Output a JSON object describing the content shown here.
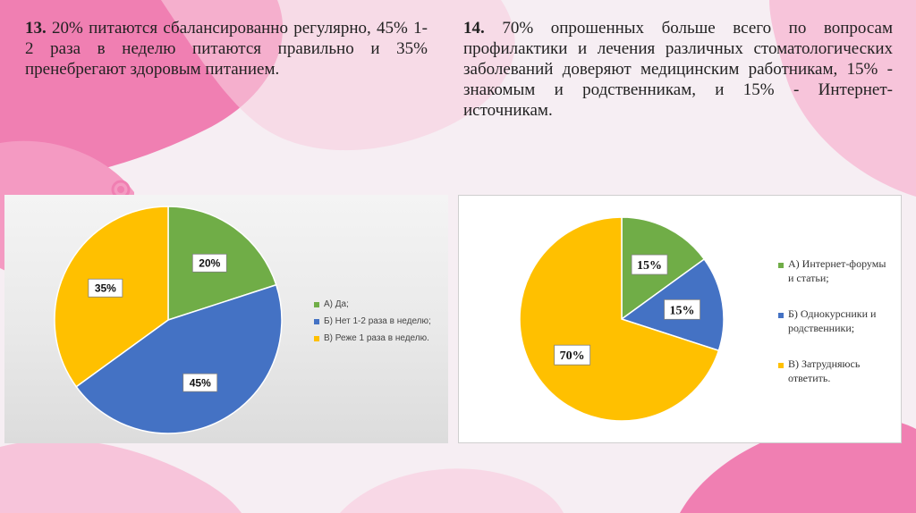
{
  "texts": {
    "p13_num": "13.",
    "p13_body": " 20% питаются сбалансированно регулярно, 45% 1-2 раза в неделю питаются правильно и 35% пренебрегают здоровым питанием.",
    "p14_num": "14.",
    "p14_body": " 70% опрошенных больше всего по вопросам профилактики и лечения различных стоматологических заболеваний доверяют медицинским работникам, 15% - знакомым и родственникам, и 15% - Интернет-источникам."
  },
  "colors": {
    "background": "#f6eef3",
    "pink": "#ef7fb0",
    "pink_light": "#f7b9d3",
    "green": "#70ad47",
    "blue": "#4472c4",
    "gold": "#ffc000"
  },
  "chart_data": [
    {
      "type": "pie",
      "categories": [
        "А) Да;",
        "Б) Нет 1-2 раза в неделю;",
        "В) Реже 1 раза в неделю."
      ],
      "values": [
        20,
        45,
        35
      ],
      "data_labels": [
        "20%",
        "45%",
        "35%"
      ],
      "colors": [
        "#70ad47",
        "#4472c4",
        "#ffc000"
      ],
      "legend_position": "right"
    },
    {
      "type": "pie",
      "categories": [
        "А) Интернет-форумы и статьи;",
        "Б) Однокурсники и родственники;",
        "В) Затрудняюсь ответить."
      ],
      "legend_lines": [
        [
          "А) Интернет-форумы",
          "и статьи;"
        ],
        [
          "Б) Однокурсники и",
          "родственники;"
        ],
        [
          "В) Затрудняюсь",
          "ответить."
        ]
      ],
      "values": [
        15,
        15,
        70
      ],
      "data_labels": [
        "15%",
        "15%",
        "70%"
      ],
      "colors": [
        "#70ad47",
        "#4472c4",
        "#ffc000"
      ],
      "legend_position": "right"
    }
  ]
}
